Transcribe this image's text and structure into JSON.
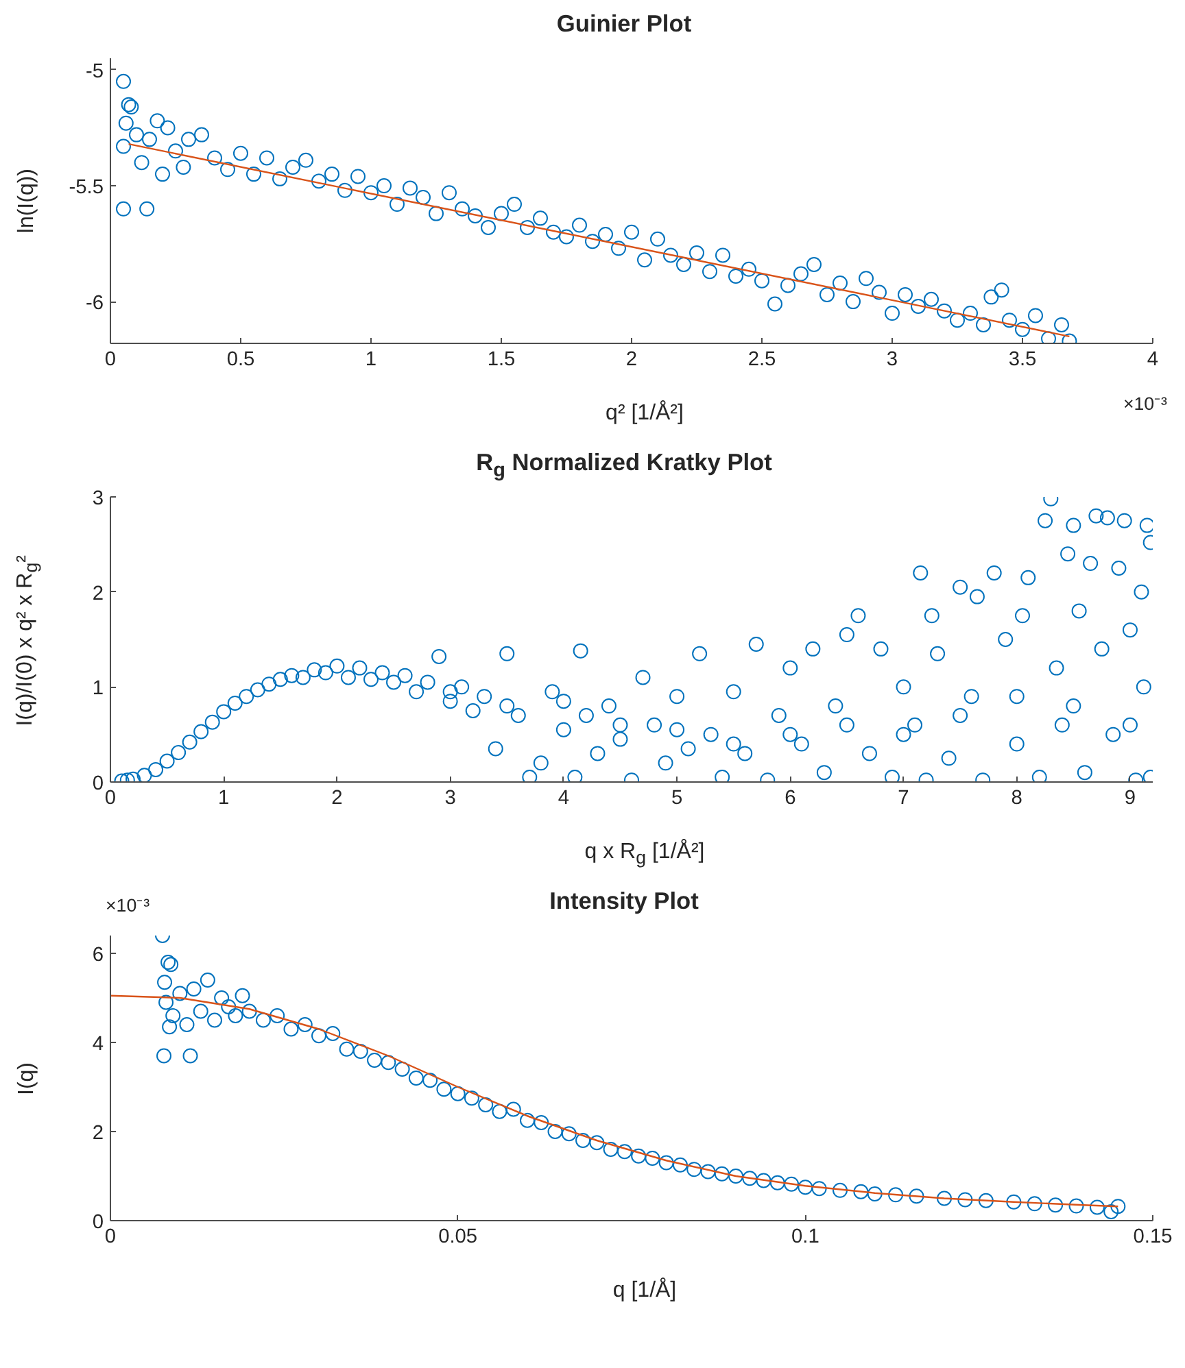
{
  "chart_data": [
    {
      "type": "scatter",
      "title": "Guinier Plot",
      "xlabel": "q² [1/Å²]",
      "ylabel": "ln(I(q))",
      "marker": "circle",
      "grid": false,
      "xlim": [
        0,
        4
      ],
      "xticks": [
        0,
        0.5,
        1,
        1.5,
        2,
        2.5,
        3,
        3.5,
        4
      ],
      "ylim": [
        -6.18,
        -4.95
      ],
      "yticks": [
        -6,
        -5.5,
        -5
      ],
      "annotations": [
        "×10⁻³"
      ],
      "series": [
        {
          "color": "#0072bd",
          "x": [
            0.05,
            0.07,
            0.08,
            0.06,
            0.05,
            0.05,
            0.14,
            0.1,
            0.12,
            0.15,
            0.18,
            0.2,
            0.22,
            0.25,
            0.28,
            0.3,
            0.35,
            0.4,
            0.45,
            0.5,
            0.55,
            0.6,
            0.65,
            0.7,
            0.75,
            0.8,
            0.85,
            0.9,
            0.95,
            1.0,
            1.05,
            1.1,
            1.15,
            1.2,
            1.25,
            1.3,
            1.35,
            1.4,
            1.45,
            1.5,
            1.55,
            1.6,
            1.65,
            1.7,
            1.75,
            1.8,
            1.85,
            1.9,
            1.95,
            2.0,
            2.05,
            2.1,
            2.15,
            2.2,
            2.25,
            2.3,
            2.35,
            2.4,
            2.45,
            2.5,
            2.55,
            2.6,
            2.65,
            2.7,
            2.75,
            2.8,
            2.85,
            2.9,
            2.95,
            3.0,
            3.05,
            3.1,
            3.15,
            3.2,
            3.25,
            3.3,
            3.35,
            3.38,
            3.42,
            3.45,
            3.5,
            3.55,
            3.6,
            3.65,
            3.68
          ],
          "values": [
            -5.05,
            -5.15,
            -5.16,
            -5.23,
            -5.33,
            -5.6,
            -5.6,
            -5.28,
            -5.4,
            -5.3,
            -5.22,
            -5.45,
            -5.25,
            -5.35,
            -5.42,
            -5.3,
            -5.28,
            -5.38,
            -5.43,
            -5.36,
            -5.45,
            -5.38,
            -5.47,
            -5.42,
            -5.39,
            -5.48,
            -5.45,
            -5.52,
            -5.46,
            -5.53,
            -5.5,
            -5.58,
            -5.51,
            -5.55,
            -5.62,
            -5.53,
            -5.6,
            -5.63,
            -5.68,
            -5.62,
            -5.58,
            -5.68,
            -5.64,
            -5.7,
            -5.72,
            -5.67,
            -5.74,
            -5.71,
            -5.77,
            -5.7,
            -5.82,
            -5.73,
            -5.8,
            -5.84,
            -5.79,
            -5.87,
            -5.8,
            -5.89,
            -5.86,
            -5.91,
            -6.01,
            -5.93,
            -5.88,
            -5.84,
            -5.97,
            -5.92,
            -6.0,
            -5.9,
            -5.96,
            -6.05,
            -5.97,
            -6.02,
            -5.99,
            -6.04,
            -6.08,
            -6.05,
            -6.1,
            -5.98,
            -5.95,
            -6.08,
            -6.12,
            -6.06,
            -6.16,
            -6.1,
            -6.17
          ]
        },
        {
          "type": "line",
          "marker": "none",
          "color": "#d95319",
          "x": [
            0.07,
            3.68
          ],
          "values": [
            -5.32,
            -6.15
          ]
        }
      ]
    },
    {
      "type": "scatter",
      "title": "R$_{g}$ Normalized Kratky Plot",
      "xlabel": "q x R$_{g}$ [1/Å²]",
      "ylabel": "I(q)/I(0) x q² x R$_{g}$²",
      "marker": "circle",
      "grid": false,
      "xlim": [
        0,
        9.2
      ],
      "xticks": [
        0,
        1,
        2,
        3,
        4,
        5,
        6,
        7,
        8,
        9
      ],
      "ylim": [
        0,
        3
      ],
      "yticks": [
        0,
        1,
        2,
        3
      ],
      "series": [
        {
          "color": "#0072bd",
          "x": [
            0.1,
            0.15,
            0.2,
            0.3,
            0.4,
            0.5,
            0.6,
            0.7,
            0.8,
            0.9,
            1.0,
            1.1,
            1.2,
            1.3,
            1.4,
            1.5,
            1.6,
            1.7,
            1.8,
            1.9,
            2.0,
            2.1,
            2.2,
            2.3,
            2.4,
            2.5,
            2.6,
            2.7,
            2.8,
            2.9,
            3.0,
            3.1,
            3.2,
            3.3,
            3.4,
            3.5,
            3.6,
            3.7,
            3.8,
            3.9,
            4.0,
            4.1,
            4.15,
            4.2,
            4.3,
            4.4,
            4.5,
            4.6,
            4.7,
            4.8,
            4.9,
            5.0,
            5.1,
            5.2,
            5.3,
            5.4,
            5.5,
            5.6,
            5.7,
            5.8,
            5.9,
            6.0,
            6.1,
            6.2,
            6.3,
            6.4,
            6.5,
            6.6,
            6.7,
            6.8,
            6.9,
            7.0,
            7.1,
            7.15,
            7.2,
            7.25,
            7.3,
            7.4,
            7.5,
            7.6,
            7.65,
            7.7,
            7.8,
            7.9,
            8.0,
            8.05,
            8.1,
            8.2,
            8.25,
            8.3,
            8.35,
            8.4,
            8.45,
            8.5,
            8.55,
            8.6,
            8.65,
            8.7,
            8.75,
            8.8,
            8.85,
            8.9,
            8.95,
            9.0,
            9.05,
            9.1,
            9.15,
            9.18,
            9.18,
            9.12,
            3.0,
            3.5,
            4.0,
            4.5,
            5.0,
            5.5,
            6.0,
            6.5,
            7.0,
            7.5,
            8.0,
            8.5,
            9.0
          ],
          "values": [
            0.01,
            0.02,
            0.03,
            0.07,
            0.13,
            0.22,
            0.31,
            0.42,
            0.53,
            0.63,
            0.74,
            0.83,
            0.9,
            0.97,
            1.03,
            1.08,
            1.12,
            1.1,
            1.18,
            1.15,
            1.22,
            1.1,
            1.2,
            1.08,
            1.15,
            1.05,
            1.12,
            0.95,
            1.05,
            1.32,
            0.85,
            1.0,
            0.75,
            0.9,
            0.35,
            1.35,
            0.7,
            0.05,
            0.2,
            0.95,
            0.55,
            0.05,
            1.38,
            0.7,
            0.3,
            0.8,
            0.45,
            0.02,
            1.1,
            0.6,
            0.2,
            0.9,
            0.35,
            1.35,
            0.5,
            0.05,
            0.95,
            0.3,
            1.45,
            0.02,
            0.7,
            1.2,
            0.4,
            1.4,
            0.1,
            0.8,
            1.55,
            1.75,
            0.3,
            1.4,
            0.05,
            1.0,
            0.6,
            2.2,
            0.02,
            1.75,
            1.35,
            0.25,
            2.05,
            0.9,
            1.95,
            0.02,
            2.2,
            1.5,
            0.4,
            1.75,
            2.15,
            0.05,
            2.75,
            2.98,
            1.2,
            0.6,
            2.4,
            2.7,
            1.8,
            0.1,
            2.3,
            2.8,
            1.4,
            2.78,
            0.5,
            2.25,
            2.75,
            1.6,
            0.02,
            2.0,
            2.7,
            2.52,
            0.05,
            1.0,
            0.95,
            0.8,
            0.85,
            0.6,
            0.55,
            0.4,
            0.5,
            0.6,
            0.5,
            0.7,
            0.9,
            0.8,
            0.6
          ]
        }
      ]
    },
    {
      "type": "scatter",
      "title": "Intensity Plot",
      "xlabel": "q [1/Å]",
      "ylabel": "I(q)",
      "marker": "circle",
      "grid": false,
      "xlim": [
        0,
        0.15
      ],
      "xticks": [
        0,
        0.05,
        0.1,
        0.15
      ],
      "ylim": [
        0,
        6.4
      ],
      "yticks": [
        0,
        2,
        4,
        6
      ],
      "annotations": [
        "×10⁻³"
      ],
      "series": [
        {
          "color": "#0072bd",
          "x": [
            0.0075,
            0.0083,
            0.0087,
            0.0078,
            0.0077,
            0.0115,
            0.008,
            0.0085,
            0.009,
            0.01,
            0.011,
            0.012,
            0.013,
            0.014,
            0.015,
            0.016,
            0.017,
            0.018,
            0.019,
            0.02,
            0.022,
            0.024,
            0.026,
            0.028,
            0.03,
            0.032,
            0.034,
            0.036,
            0.038,
            0.04,
            0.042,
            0.044,
            0.046,
            0.048,
            0.05,
            0.052,
            0.054,
            0.056,
            0.058,
            0.06,
            0.062,
            0.064,
            0.066,
            0.068,
            0.07,
            0.072,
            0.074,
            0.076,
            0.078,
            0.08,
            0.082,
            0.084,
            0.086,
            0.088,
            0.09,
            0.092,
            0.094,
            0.096,
            0.098,
            0.1,
            0.102,
            0.105,
            0.108,
            0.11,
            0.113,
            0.116,
            0.12,
            0.123,
            0.126,
            0.13,
            0.133,
            0.136,
            0.139,
            0.142,
            0.144,
            0.145
          ],
          "values": [
            6.4,
            5.8,
            5.75,
            5.35,
            3.7,
            3.7,
            4.9,
            4.35,
            4.6,
            5.1,
            4.4,
            5.2,
            4.7,
            5.4,
            4.5,
            5.0,
            4.8,
            4.6,
            5.05,
            4.7,
            4.5,
            4.6,
            4.3,
            4.4,
            4.15,
            4.2,
            3.85,
            3.8,
            3.6,
            3.55,
            3.4,
            3.2,
            3.15,
            2.95,
            2.85,
            2.75,
            2.6,
            2.45,
            2.5,
            2.25,
            2.2,
            2.0,
            1.95,
            1.8,
            1.75,
            1.6,
            1.55,
            1.45,
            1.4,
            1.3,
            1.25,
            1.15,
            1.1,
            1.05,
            1.0,
            0.95,
            0.9,
            0.85,
            0.82,
            0.75,
            0.72,
            0.68,
            0.65,
            0.6,
            0.58,
            0.55,
            0.5,
            0.47,
            0.45,
            0.42,
            0.38,
            0.35,
            0.33,
            0.3,
            0.2,
            0.32
          ]
        },
        {
          "type": "line",
          "marker": "none",
          "color": "#d95319",
          "x": [
            0,
            0.01,
            0.02,
            0.03,
            0.04,
            0.05,
            0.06,
            0.07,
            0.08,
            0.09,
            0.1,
            0.11,
            0.12,
            0.13,
            0.14,
            0.145
          ],
          "values": [
            5.05,
            5.0,
            4.75,
            4.3,
            3.7,
            3.0,
            2.35,
            1.8,
            1.35,
            1.0,
            0.78,
            0.62,
            0.5,
            0.42,
            0.35,
            0.32
          ]
        }
      ]
    }
  ]
}
